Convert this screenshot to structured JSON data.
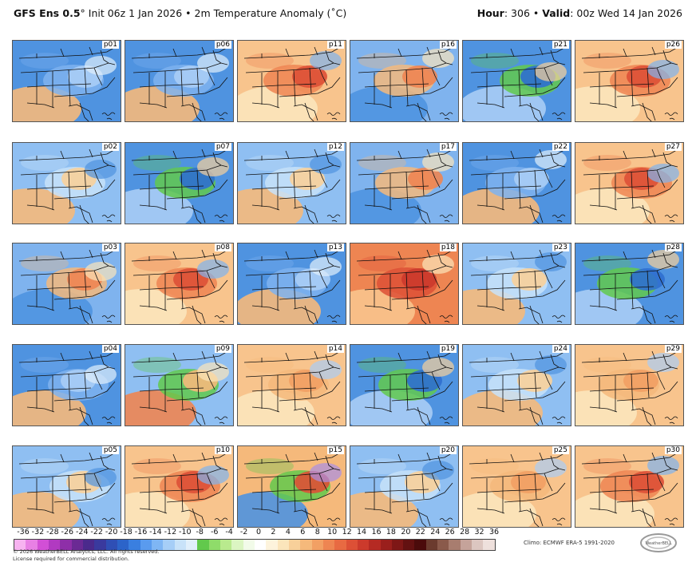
{
  "header": {
    "model": "GFS Ens 0.5",
    "degree_symbol": "°",
    "init": "Init 06z 1 Jan 2026",
    "bullet": "•",
    "field": "2m Temperature Anomaly (˚C)",
    "hour_label": "Hour",
    "hour_value": ": 306",
    "valid_label": "Valid",
    "valid_value": ": 00z Wed 14 Jan 2026"
  },
  "panels": [
    {
      "id": "p01",
      "tone": "cold"
    },
    {
      "id": "p06",
      "tone": "cold"
    },
    {
      "id": "p11",
      "tone": "warm-hot"
    },
    {
      "id": "p16",
      "tone": "mixed-warm"
    },
    {
      "id": "p21",
      "tone": "cold-green"
    },
    {
      "id": "p26",
      "tone": "warm-hot"
    },
    {
      "id": "p02",
      "tone": "cool"
    },
    {
      "id": "p07",
      "tone": "cold-green"
    },
    {
      "id": "p12",
      "tone": "cool"
    },
    {
      "id": "p17",
      "tone": "mixed-warm"
    },
    {
      "id": "p22",
      "tone": "cold"
    },
    {
      "id": "p27",
      "tone": "warm-hot"
    },
    {
      "id": "p03",
      "tone": "mixed-warm"
    },
    {
      "id": "p08",
      "tone": "warm-hot"
    },
    {
      "id": "p13",
      "tone": "cold"
    },
    {
      "id": "p18",
      "tone": "hot"
    },
    {
      "id": "p23",
      "tone": "cool"
    },
    {
      "id": "p28",
      "tone": "cold-green"
    },
    {
      "id": "p04",
      "tone": "cold"
    },
    {
      "id": "p09",
      "tone": "mixed-green"
    },
    {
      "id": "p14",
      "tone": "warm"
    },
    {
      "id": "p19",
      "tone": "cold-green"
    },
    {
      "id": "p24",
      "tone": "cool"
    },
    {
      "id": "p29",
      "tone": "warm"
    },
    {
      "id": "p05",
      "tone": "cool"
    },
    {
      "id": "p10",
      "tone": "warm-hot"
    },
    {
      "id": "p15",
      "tone": "green-warm"
    },
    {
      "id": "p20",
      "tone": "cool"
    },
    {
      "id": "p25",
      "tone": "warm"
    },
    {
      "id": "p30",
      "tone": "warm-hot"
    }
  ],
  "legend": {
    "ticks": [
      "-36",
      "-32",
      "-28",
      "-26",
      "-24",
      "-22",
      "-20",
      "-18",
      "-16",
      "-14",
      "-12",
      "-10",
      "-8",
      "-6",
      "-4",
      "-2",
      "0",
      "2",
      "4",
      "6",
      "8",
      "10",
      "12",
      "14",
      "16",
      "18",
      "20",
      "22",
      "24",
      "26",
      "28",
      "32",
      "36"
    ],
    "colors": [
      "#f7b3f0",
      "#e880e4",
      "#d24fd6",
      "#b13ac1",
      "#8e2fa8",
      "#6b2a94",
      "#4b2a8c",
      "#3a3a9e",
      "#2f4fb5",
      "#2c64c9",
      "#3a7fe0",
      "#5a9bee",
      "#7fb6f4",
      "#a6cef7",
      "#c8e2f9",
      "#e1effb",
      "#62c94c",
      "#8fdc6a",
      "#b9ea8e",
      "#dbf5c2",
      "#f2fbe9",
      "#ffffff",
      "#fdf3dc",
      "#fbe5bb",
      "#f8d09a",
      "#f5b97b",
      "#f2a064",
      "#ee8552",
      "#e86a42",
      "#dd5036",
      "#cc3a2c",
      "#b52a23",
      "#9a1f1c",
      "#7e1716",
      "#631111",
      "#4b0b0b",
      "#6b3b2e",
      "#8a5a4b",
      "#a87d6f",
      "#c5a39a",
      "#dcc6c0",
      "#eee0dc"
    ],
    "climo": "Climo: ECMWF ERA-5 1991-2020"
  },
  "footer": {
    "copyright": "© 2026 WeatherBELL Analytics, LLC. All rights reserved.",
    "license": "License required for commercial distribution.",
    "logo_text": "WeatherBELL"
  }
}
